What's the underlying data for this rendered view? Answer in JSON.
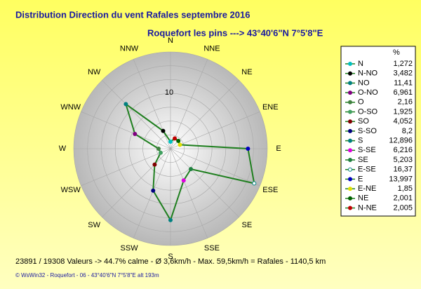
{
  "chart_data": {
    "type": "polar",
    "title": "Distribution Direction du vent Rafales  septembre 2016",
    "subtitle": "Roquefort les pins     --->  43°40'6\"N 7°5'8\"E",
    "legend_title": "%",
    "legend_position": "right",
    "line_color": "#1f7f1f",
    "categories": [
      "N",
      "N-NO",
      "NO",
      "O-NO",
      "O",
      "O-SO",
      "SO",
      "S-SO",
      "S",
      "S-SE",
      "SE",
      "E-SE",
      "E",
      "E-NE",
      "NE",
      "N-NE"
    ],
    "values": [
      1.272,
      3.482,
      11.41,
      6.961,
      2.16,
      1.925,
      4.052,
      8.2,
      12.896,
      6.216,
      5.203,
      16.37,
      13.997,
      1.85,
      2.001,
      2.005
    ],
    "value_labels": [
      "1,272",
      "3,482",
      "11,41",
      "6,961",
      "2,16",
      "1,925",
      "4,052",
      "8,2",
      "12,896",
      "6,216",
      "5,203",
      "16,37",
      "13,997",
      "1,85",
      "2,001",
      "2,005"
    ],
    "colors": [
      "#00c0c0",
      "#000000",
      "#008080",
      "#800080",
      "#408040",
      "#40a060",
      "#800000",
      "#000080",
      "#008080",
      "#e000e0",
      "#208040",
      "#ffffff",
      "#0000c0",
      "#e0e000",
      "#006000",
      "#c00000"
    ],
    "axis_labels": [
      "N",
      "NNE",
      "NE",
      "ENE",
      "E",
      "ESE",
      "SE",
      "SSE",
      "S",
      "SSW",
      "SW",
      "WSW",
      "W",
      "WNW",
      "NW",
      "NNW"
    ],
    "rlim": [
      0,
      17.5
    ],
    "rticks": [
      10
    ],
    "rgrid": [
      2.5,
      5,
      7.5,
      10,
      12.5,
      15,
      17.5
    ],
    "footer": "23891 / 19308 Valeurs  -> 44.7% calme   -   Ø 3,6km/h   -   Max. 59,5km/h = Rafales   -   1140,5 km",
    "credit": "© WsWin32  -  Roquefort - 06  -  43°40'6\"N 7°5'8\"E alt 193m"
  }
}
